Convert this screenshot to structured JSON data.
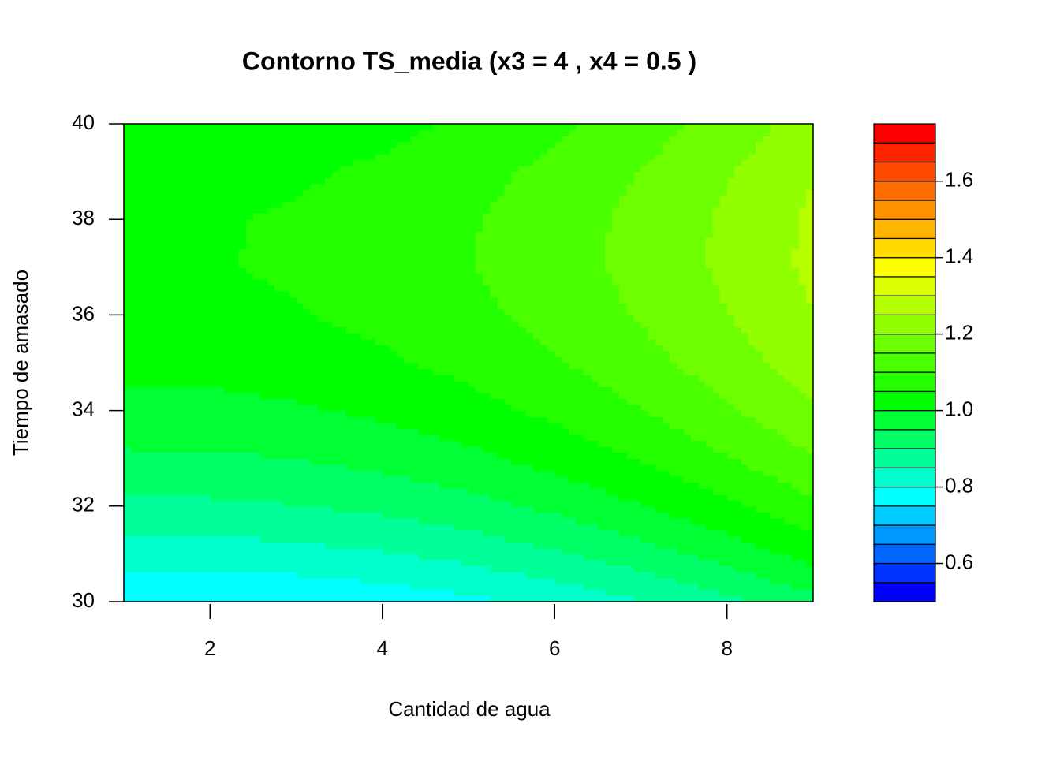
{
  "chart_data": {
    "type": "filled-contour",
    "title": "Contorno TS_media (x3 = 4 , x4 = 0.5 )",
    "x_label": "Cantidad de agua",
    "y_label": "Tiempo de amasado",
    "x": [
      1,
      2,
      3,
      4,
      5,
      6,
      7,
      8,
      9
    ],
    "y": [
      30,
      31,
      32,
      33,
      34,
      35,
      36,
      37,
      38,
      39,
      40
    ],
    "z": [
      [
        0.754,
        0.752,
        0.757,
        0.769,
        0.789,
        0.815,
        0.849,
        0.889,
        0.936
      ],
      [
        0.827,
        0.826,
        0.833,
        0.846,
        0.867,
        0.894,
        0.929,
        0.97,
        1.018
      ],
      [
        0.89,
        0.89,
        0.898,
        0.912,
        0.933,
        0.961,
        0.997,
        1.04,
        1.088
      ],
      [
        0.942,
        0.943,
        0.951,
        0.966,
        0.988,
        1.017,
        1.054,
        1.097,
        1.146
      ],
      [
        0.984,
        0.985,
        0.994,
        1.009,
        1.032,
        1.062,
        1.099,
        1.143,
        1.193
      ],
      [
        1.014,
        1.016,
        1.026,
        1.042,
        1.065,
        1.095,
        1.133,
        1.177,
        1.227
      ],
      [
        1.035,
        1.037,
        1.047,
        1.063,
        1.087,
        1.117,
        1.155,
        1.199,
        1.25
      ],
      [
        1.044,
        1.047,
        1.056,
        1.073,
        1.097,
        1.127,
        1.165,
        1.21,
        1.261
      ],
      [
        1.043,
        1.046,
        1.055,
        1.072,
        1.096,
        1.126,
        1.164,
        1.209,
        1.26
      ],
      [
        1.031,
        1.034,
        1.043,
        1.059,
        1.083,
        1.113,
        1.151,
        1.196,
        1.247
      ],
      [
        1.009,
        1.011,
        1.02,
        1.036,
        1.059,
        1.089,
        1.127,
        1.171,
        1.222
      ]
    ],
    "xlim": [
      1,
      9
    ],
    "ylim": [
      30,
      40
    ],
    "xticks": [
      2,
      4,
      6,
      8
    ],
    "yticks": [
      30,
      32,
      34,
      36,
      38,
      40
    ],
    "levels": [
      0.5,
      0.55,
      0.6,
      0.65,
      0.7,
      0.75,
      0.8,
      0.85,
      0.9,
      0.95,
      1,
      1.05,
      1.1,
      1.15,
      1.2,
      1.25,
      1.3,
      1.35,
      1.4,
      1.45,
      1.5,
      1.55,
      1.6,
      1.65,
      1.7,
      1.75
    ],
    "colors": [
      "#0000FF",
      "#0033FF",
      "#0066FF",
      "#0099FF",
      "#00CCFF",
      "#00FFFF",
      "#00FFCC",
      "#00FF99",
      "#00FF66",
      "#00FF33",
      "#00FF00",
      "#24FF00",
      "#49FF00",
      "#6DFF00",
      "#92FF00",
      "#B6FF00",
      "#DBFF00",
      "#FFFF00",
      "#FFDB00",
      "#FFB600",
      "#FF9200",
      "#FF6D00",
      "#FF4900",
      "#FF2400",
      "#FF0000"
    ],
    "colorbar_ticks": [
      0.6,
      0.8,
      {
        "value": 1,
        "label": "1.0"
      },
      1.2,
      1.4,
      1.6
    ]
  }
}
